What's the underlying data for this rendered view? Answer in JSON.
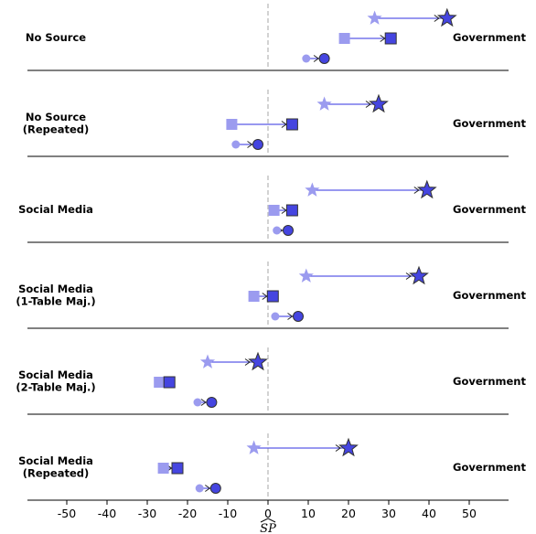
{
  "chart_data": {
    "type": "scatter",
    "xlabel": "SP",
    "xlabel_hat": true,
    "xlim": [
      -59,
      60
    ],
    "xticks": [
      -50,
      -40,
      -30,
      -20,
      -10,
      0,
      10,
      20,
      30,
      40,
      50
    ],
    "xtick_labels": [
      "-50",
      "-40",
      "-30",
      "-20",
      "-10",
      "0",
      "10",
      "20",
      "30",
      "40",
      "50"
    ],
    "reference_line_x": 0,
    "colors": {
      "light": "#9b9bef",
      "dark": "#4545e0",
      "line": "#5a5ae6",
      "outline": "#333333",
      "ref": "#bbbbbb"
    },
    "rows": [
      {
        "left_label": [
          "No Source"
        ],
        "right_label": "Government",
        "series": [
          {
            "marker": "star",
            "from": 26.5,
            "to": 44.5
          },
          {
            "marker": "square",
            "from": 19,
            "to": 30.5
          },
          {
            "marker": "circle",
            "from": 9.5,
            "to": 14
          }
        ]
      },
      {
        "left_label": [
          "No Source",
          "(Repeated)"
        ],
        "right_label": "Government",
        "series": [
          {
            "marker": "star",
            "from": 14,
            "to": 27.5
          },
          {
            "marker": "square",
            "from": -9,
            "to": 6
          },
          {
            "marker": "circle",
            "from": -8,
            "to": -2.5
          }
        ]
      },
      {
        "left_label": [
          "Social Media"
        ],
        "right_label": "Government",
        "series": [
          {
            "marker": "star",
            "from": 11,
            "to": 39.5
          },
          {
            "marker": "square",
            "from": 1.5,
            "to": 6
          },
          {
            "marker": "circle",
            "from": 2.2,
            "to": 5
          }
        ]
      },
      {
        "left_label": [
          "Social Media",
          "(1-Table Maj.)"
        ],
        "right_label": "Government",
        "series": [
          {
            "marker": "star",
            "from": 9.5,
            "to": 37.5
          },
          {
            "marker": "square",
            "from": -3.5,
            "to": 1.2
          },
          {
            "marker": "circle",
            "from": 1.8,
            "to": 7.5
          }
        ]
      },
      {
        "left_label": [
          "Social Media",
          "(2-Table Maj.)"
        ],
        "right_label": "Government",
        "series": [
          {
            "marker": "star",
            "from": -15,
            "to": -2.5
          },
          {
            "marker": "square",
            "from": -27,
            "to": -24.5
          },
          {
            "marker": "circle",
            "from": -17.5,
            "to": -14
          }
        ]
      },
      {
        "left_label": [
          "Social Media",
          "(Repeated)"
        ],
        "right_label": "Government",
        "series": [
          {
            "marker": "star",
            "from": -3.5,
            "to": 20
          },
          {
            "marker": "square",
            "from": -26,
            "to": -22.5
          },
          {
            "marker": "circle",
            "from": -17,
            "to": -13
          }
        ]
      }
    ]
  }
}
